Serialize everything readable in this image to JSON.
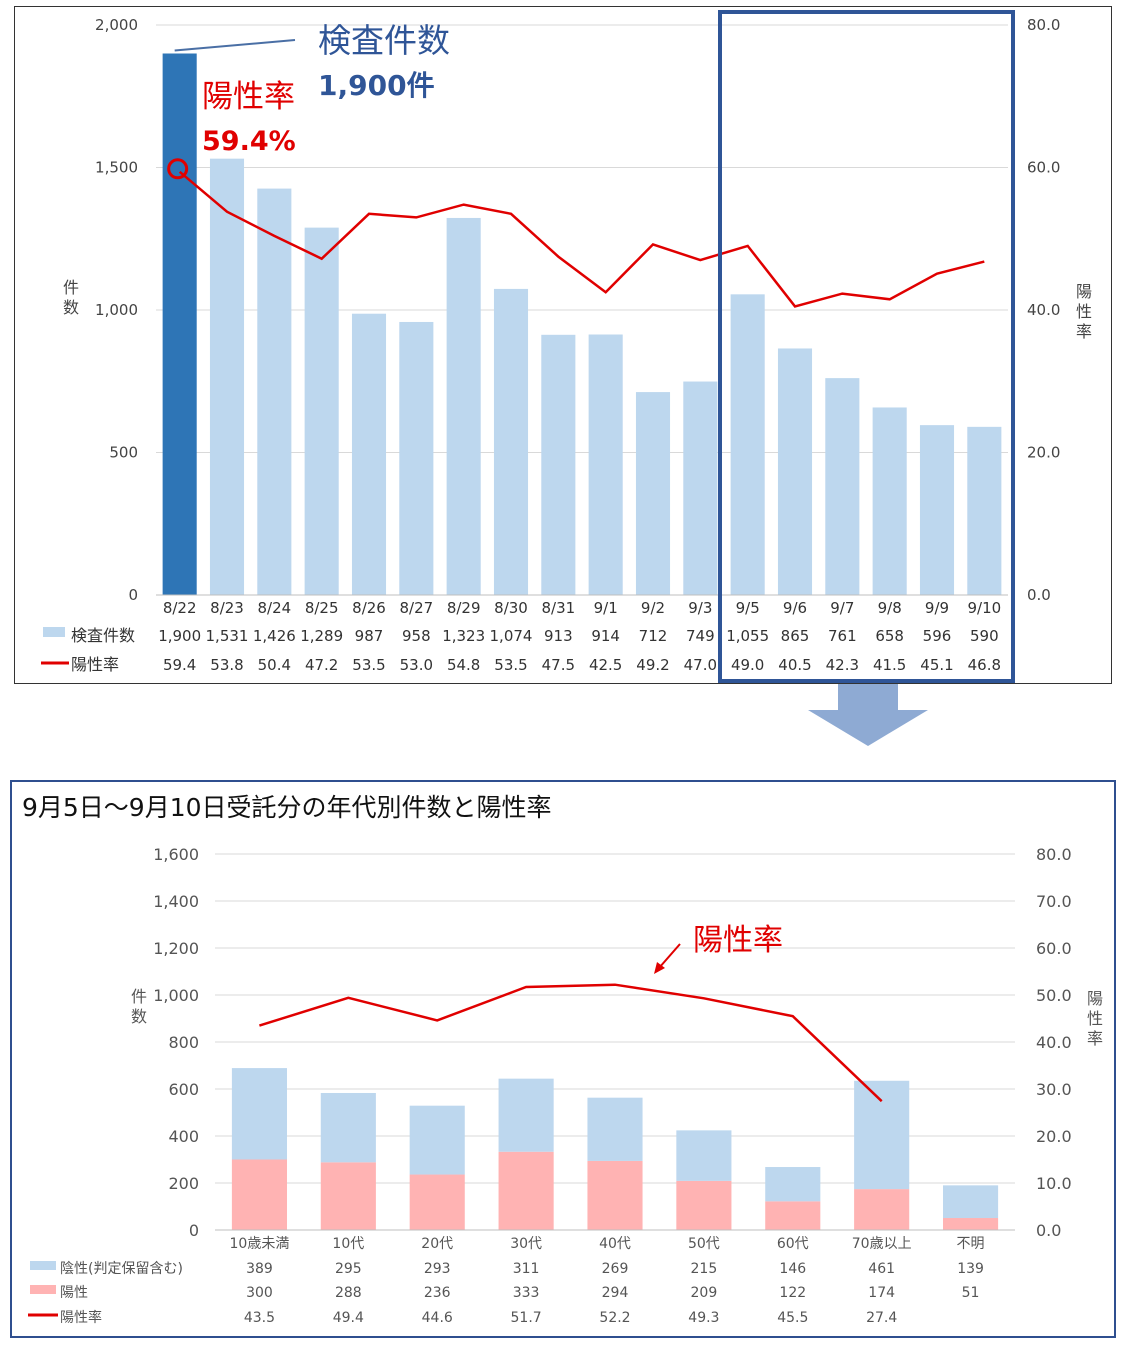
{
  "chart_data": [
    {
      "type": "bar",
      "categories": [
        "8/22",
        "8/23",
        "8/24",
        "8/25",
        "8/26",
        "8/27",
        "8/29",
        "8/30",
        "8/31",
        "9/1",
        "9/2",
        "9/3",
        "9/5",
        "9/6",
        "9/7",
        "9/8",
        "9/9",
        "9/10"
      ],
      "series": [
        {
          "name": "検査件数",
          "type": "bar",
          "axis": "left",
          "values": [
            1900,
            1531,
            1426,
            1289,
            987,
            958,
            1323,
            1074,
            913,
            914,
            712,
            749,
            1055,
            865,
            761,
            658,
            596,
            590
          ]
        },
        {
          "name": "陽性率",
          "type": "line",
          "axis": "right",
          "values": [
            59.4,
            53.8,
            50.4,
            47.2,
            53.5,
            53.0,
            54.8,
            53.5,
            47.5,
            42.5,
            49.2,
            47.0,
            49.0,
            40.5,
            42.3,
            41.5,
            45.1,
            46.8
          ]
        }
      ],
      "table_values": {
        "counts": [
          "1,900",
          "1,531",
          "1,426",
          "1,289",
          "987",
          "958",
          "1,323",
          "1,074",
          "913",
          "914",
          "712",
          "749",
          "1,055",
          "865",
          "761",
          "658",
          "596",
          "590"
        ],
        "rates": [
          "59.4",
          "53.8",
          "50.4",
          "47.2",
          "53.5",
          "53.0",
          "54.8",
          "53.5",
          "47.5",
          "42.5",
          "49.2",
          "47.0",
          "49.0",
          "40.5",
          "42.3",
          "41.5",
          "45.1",
          "46.8"
        ]
      },
      "ylabel": "件数",
      "y2label": "陽性率",
      "ylim": [
        0,
        2000
      ],
      "y2lim": [
        0,
        80
      ],
      "yticks": [
        "0",
        "500",
        "1,000",
        "1,500",
        "2,000"
      ],
      "y2ticks": [
        "0.0",
        "20.0",
        "40.0",
        "60.0",
        "80.0"
      ],
      "annotations": {
        "count_title": "検査件数",
        "count_value": "1,900件",
        "rate_title": "陽性率",
        "rate_value": "59.4%"
      },
      "highlight_range": [
        "9/5",
        "9/10"
      ],
      "colors": {
        "bar": "#bdd7ee",
        "bar_highlight": "#2e75b6",
        "line": "#e00000",
        "annot_blue": "#2f5597",
        "annot_red": "#e00000",
        "frame": "#2f5597"
      }
    },
    {
      "type": "bar",
      "title": "9月5日～9月10日受託分の年代別件数と陽性率",
      "categories": [
        "10歳未満",
        "10代",
        "20代",
        "30代",
        "40代",
        "50代",
        "60代",
        "70歳以上",
        "不明"
      ],
      "series": [
        {
          "name": "陰性(判定保留含む)",
          "type": "stacked-bar",
          "axis": "left",
          "values": [
            389,
            295,
            293,
            311,
            269,
            215,
            146,
            461,
            139
          ]
        },
        {
          "name": "陽性",
          "type": "stacked-bar",
          "axis": "left",
          "values": [
            300,
            288,
            236,
            333,
            294,
            209,
            122,
            174,
            51
          ]
        },
        {
          "name": "陽性率",
          "type": "line",
          "axis": "right",
          "values": [
            43.5,
            49.4,
            44.6,
            51.7,
            52.2,
            49.3,
            45.5,
            27.4,
            null
          ]
        }
      ],
      "table_values": {
        "negative": [
          "389",
          "295",
          "293",
          "311",
          "269",
          "215",
          "146",
          "461",
          "139"
        ],
        "positive": [
          "300",
          "288",
          "236",
          "333",
          "294",
          "209",
          "122",
          "174",
          "51"
        ],
        "rates": [
          "43.5",
          "49.4",
          "44.6",
          "51.7",
          "52.2",
          "49.3",
          "45.5",
          "27.4",
          ""
        ]
      },
      "ylabel": "件数",
      "y2label": "陽性率",
      "ylim": [
        0,
        1600
      ],
      "y2lim": [
        0,
        80
      ],
      "yticks": [
        "0",
        "200",
        "400",
        "600",
        "800",
        "1,000",
        "1,200",
        "1,400",
        "1,600"
      ],
      "y2ticks": [
        "0.0",
        "10.0",
        "20.0",
        "30.0",
        "40.0",
        "50.0",
        "60.0",
        "70.0",
        "80.0"
      ],
      "annotations": {
        "rate_callout": "陽性率"
      },
      "colors": {
        "negative": "#bdd7ee",
        "positive": "#ffb3b3",
        "line": "#e00000"
      }
    }
  ]
}
